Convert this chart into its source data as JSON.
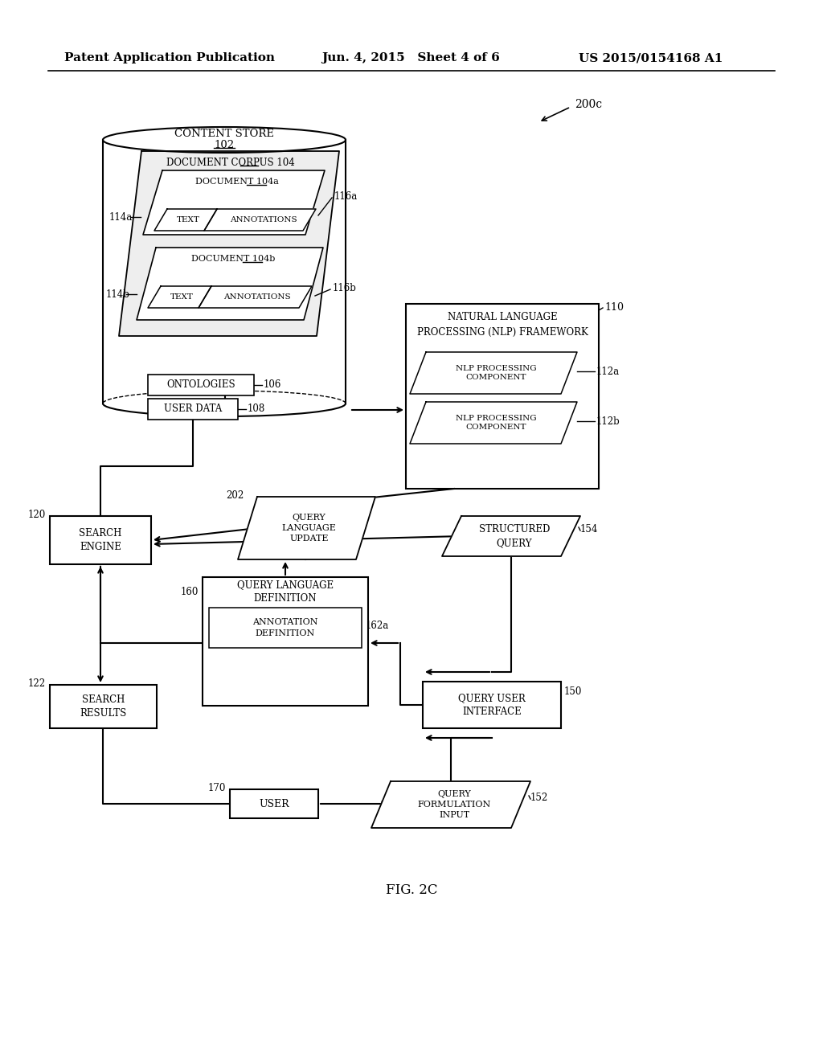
{
  "bg_color": "#ffffff",
  "header_left": "Patent Application Publication",
  "header_mid": "Jun. 4, 2015   Sheet 4 of 6",
  "header_right": "US 2015/0154168 A1",
  "figure_label": "FIG. 2C",
  "ref_200c": "200c",
  "content_store_label": "CONTENT STORE",
  "content_store_ref": "102",
  "doc_corpus_label": "DOCUMENT CORPUS 104",
  "doc_a_label": "DOCUMENT 104a",
  "doc_b_label": "DOCUMENT 104b",
  "text_label": "TEXT",
  "annotations_label": "ANNOTATIONS",
  "ref_116a": "116a",
  "ref_116b": "116b",
  "ref_114a": "114a",
  "ref_114b": "114b",
  "ontologies_label": "ONTOLOGIES",
  "ref_106": "106",
  "user_data_label": "USER DATA",
  "ref_108": "108",
  "nlp_framework_label": "NATURAL LANGUAGE\nPROCESSING (NLP) FRAMEWORK",
  "ref_110": "110",
  "nlp_comp_label": "NLP PROCESSING\nCOMPONENT",
  "ref_112a": "112a",
  "ref_112b": "112b",
  "search_engine_label": "SEARCH\nENGINE",
  "ref_120": "120",
  "query_lang_update_label": "QUERY\nLANGUAGE\nUPDATE",
  "ref_202": "202",
  "structured_query_label": "STRUCTURED\nQUERY",
  "ref_154": "154",
  "query_lang_def_label": "QUERY LANGUAGE\nDEFINITION",
  "ref_160": "160",
  "annotation_def_label": "ANNOTATION\nDEFINITION",
  "ref_162a": "162a",
  "search_results_label": "SEARCH\nRESULTS",
  "ref_122": "122",
  "query_ui_label": "QUERY USER\nINTERFACE",
  "ref_150": "150",
  "user_label": "USER",
  "ref_170": "170",
  "query_form_label": "QUERY\nFORMULATION\nINPUT",
  "ref_152": "152"
}
